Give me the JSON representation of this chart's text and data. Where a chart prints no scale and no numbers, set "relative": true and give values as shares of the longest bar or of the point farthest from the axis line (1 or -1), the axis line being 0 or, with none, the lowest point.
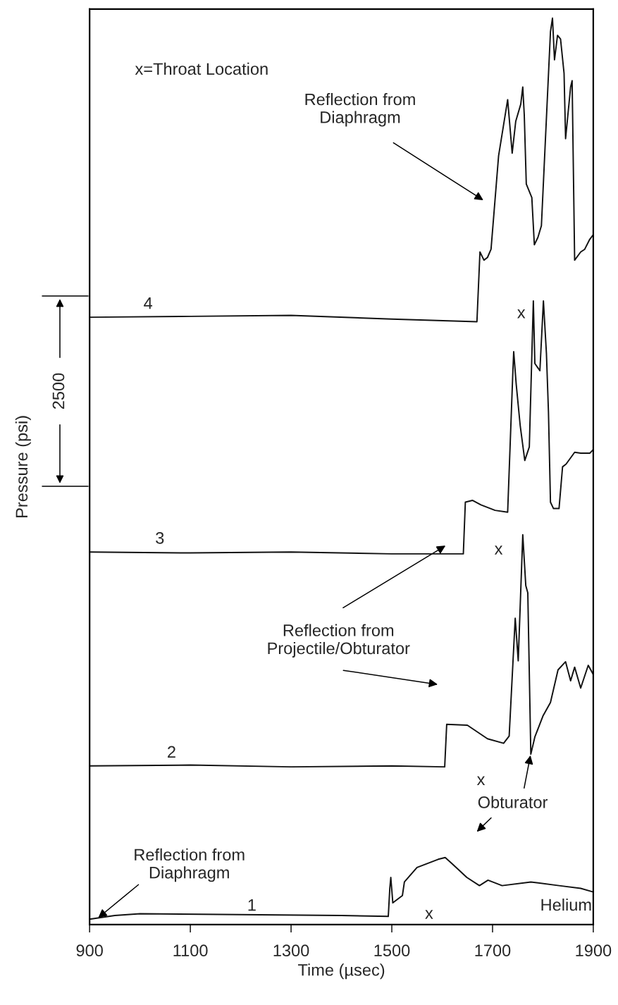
{
  "chart_data": {
    "type": "line",
    "relative": true,
    "xlabel": "Time (µsec)",
    "ylabel": "Pressure (psi)",
    "xlim": [
      900,
      1900
    ],
    "xticks": [
      900,
      1100,
      1300,
      1500,
      1700,
      1900
    ],
    "grid": false,
    "legend": false,
    "marker": "none",
    "line_style": "solid",
    "series": [
      {
        "name": "4",
        "color": "#111111",
        "x": [
          900,
          1100,
          1300,
          1500,
          1669,
          1675,
          1683,
          1690,
          1697,
          1712,
          1730,
          1739,
          1746,
          1756,
          1760,
          1763,
          1767,
          1778,
          1783,
          1790,
          1797,
          1815,
          1819,
          1823,
          1829,
          1835,
          1842,
          1845,
          1855,
          1858,
          1863,
          1875,
          1883,
          1893,
          1900
        ],
        "values": [
          0.67,
          0.671,
          0.672,
          0.668,
          0.665,
          0.742,
          0.733,
          0.736,
          0.745,
          0.848,
          0.91,
          0.851,
          0.886,
          0.905,
          0.924,
          0.893,
          0.817,
          0.802,
          0.75,
          0.758,
          0.771,
          0.985,
          1.0,
          0.954,
          0.981,
          0.977,
          0.939,
          0.867,
          0.924,
          0.931,
          0.733,
          0.742,
          0.745,
          0.756,
          0.761
        ]
      },
      {
        "name": "3",
        "color": "#111111",
        "x": [
          900,
          1100,
          1300,
          1500,
          1642,
          1646,
          1660,
          1677,
          1705,
          1730,
          1740,
          1742,
          1747,
          1755,
          1764,
          1773,
          1781,
          1784,
          1794,
          1801,
          1807,
          1811,
          1815,
          1821,
          1832,
          1839,
          1846,
          1863,
          1875,
          1893,
          1900
        ],
        "values": [
          0.411,
          0.41,
          0.411,
          0.409,
          0.409,
          0.466,
          0.468,
          0.463,
          0.457,
          0.455,
          0.605,
          0.632,
          0.596,
          0.55,
          0.512,
          0.527,
          0.688,
          0.619,
          0.611,
          0.688,
          0.63,
          0.566,
          0.466,
          0.459,
          0.459,
          0.505,
          0.508,
          0.521,
          0.52,
          0.52,
          0.524
        ]
      },
      {
        "name": "2",
        "color": "#111111",
        "x": [
          900,
          1100,
          1300,
          1500,
          1605,
          1609,
          1650,
          1690,
          1722,
          1733,
          1745,
          1751,
          1760,
          1766,
          1770,
          1776,
          1784,
          1800,
          1815,
          1830,
          1845,
          1855,
          1863,
          1875,
          1890,
          1900
        ],
        "values": [
          0.175,
          0.176,
          0.174,
          0.175,
          0.174,
          0.221,
          0.22,
          0.205,
          0.2,
          0.208,
          0.338,
          0.291,
          0.43,
          0.374,
          0.366,
          0.188,
          0.207,
          0.23,
          0.245,
          0.281,
          0.29,
          0.269,
          0.284,
          0.261,
          0.286,
          0.276
        ]
      },
      {
        "name": "1",
        "color": "#111111",
        "x": [
          900,
          950,
          1000,
          1200,
          1400,
          1493,
          1496,
          1498,
          1502,
          1521,
          1525,
          1550,
          1592,
          1606,
          1620,
          1649,
          1674,
          1691,
          1719,
          1776,
          1832,
          1875,
          1900
        ],
        "values": [
          0.006,
          0.01,
          0.012,
          0.011,
          0.01,
          0.009,
          0.04,
          0.052,
          0.024,
          0.032,
          0.047,
          0.063,
          0.072,
          0.074,
          0.067,
          0.052,
          0.043,
          0.049,
          0.043,
          0.047,
          0.043,
          0.04,
          0.036
        ]
      }
    ],
    "annotations": [
      "x=Throat Location",
      "Reflection from\nDiaphragm",
      "Reflection from\nProjectile/Obturator",
      "Obturator",
      "Reflection from\nDiaphragm",
      "Helium",
      "x",
      "x",
      "x",
      "x",
      "2500"
    ]
  }
}
